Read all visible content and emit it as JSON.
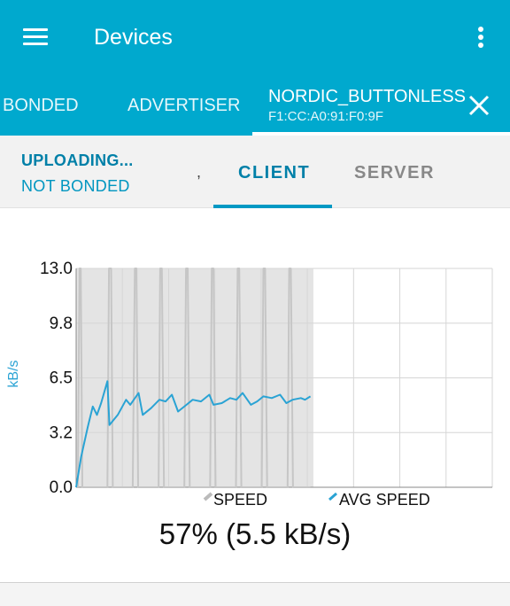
{
  "appbar": {
    "title": "Devices",
    "menu_icon": "hamburger-icon",
    "overflow_icon": "more-vert-icon"
  },
  "device_tabs": {
    "bonded": "BONDED",
    "advertiser": "ADVERTISER",
    "active_name": "NORDIC_BUTTONLESS",
    "active_address": "F1:CC:A0:91:F0:9F",
    "close_icon": "close-icon"
  },
  "status": {
    "line1": "UPLOADING...",
    "line2": "NOT BONDED"
  },
  "sub_tabs": {
    "cut_off": ",",
    "client": "CLIENT",
    "server": "SERVER"
  },
  "colors": {
    "accent": "#00a9ce",
    "speed": "#c6c6c6",
    "avg_speed": "#2aa3d4",
    "progress_fill": "#e4e4e4"
  },
  "chart_data": {
    "type": "line",
    "ylabel": "kB/s",
    "ylim": [
      0,
      13.0
    ],
    "yticks": [
      "0.0",
      "3.2",
      "6.5",
      "9.8",
      "13.0"
    ],
    "x_range": [
      0,
      100
    ],
    "progress_percent": 57,
    "series": [
      {
        "name": "SPEED",
        "x": [
          0.4,
          0.8,
          1.1,
          1.5,
          7.5,
          7.9,
          8.4,
          8.8,
          13.6,
          14.1,
          14.5,
          14.9,
          19.8,
          20.2,
          20.6,
          21.1,
          26.0,
          26.4,
          26.8,
          27.3,
          32.2,
          32.6,
          33.0,
          33.5,
          38.4,
          38.8,
          39.2,
          39.7,
          44.6,
          45.0,
          45.4,
          45.9,
          50.8,
          51.2,
          51.6,
          52.1,
          56.3
        ],
        "values": [
          0,
          13,
          13,
          0,
          0,
          13,
          13,
          0,
          0,
          13,
          13,
          0,
          0,
          13,
          13,
          0,
          0,
          13,
          13,
          0,
          0,
          13,
          13,
          0,
          0,
          13,
          13,
          0,
          0,
          13,
          13,
          0,
          0,
          13,
          13,
          0,
          0
        ]
      },
      {
        "name": "AVG SPEED",
        "x": [
          0,
          1.2,
          2.8,
          4.0,
          5.0,
          6.0,
          7.5,
          8.0,
          10.0,
          12.0,
          13.0,
          15.0,
          16.0,
          18.0,
          20.0,
          21.5,
          23.0,
          24.5,
          26.5,
          28.0,
          30.0,
          32.0,
          33.0,
          35.0,
          37.0,
          38.5,
          40.0,
          42.0,
          43.5,
          45.0,
          47.0,
          49.0,
          50.5,
          52.0,
          54.0,
          55.0,
          56.3
        ],
        "values": [
          0,
          1.8,
          3.6,
          4.8,
          4.3,
          5.0,
          6.3,
          3.7,
          4.3,
          5.2,
          4.9,
          5.6,
          4.3,
          4.7,
          5.2,
          5.1,
          5.5,
          4.5,
          4.9,
          5.2,
          5.1,
          5.5,
          4.9,
          5.0,
          5.3,
          5.2,
          5.6,
          4.9,
          5.1,
          5.4,
          5.3,
          5.5,
          5.0,
          5.2,
          5.3,
          5.2,
          5.4
        ]
      }
    ],
    "legend": [
      "SPEED",
      "AVG SPEED"
    ],
    "legend_position": "bottom"
  },
  "progress": {
    "text": "57% (5.5 kB/s)"
  }
}
